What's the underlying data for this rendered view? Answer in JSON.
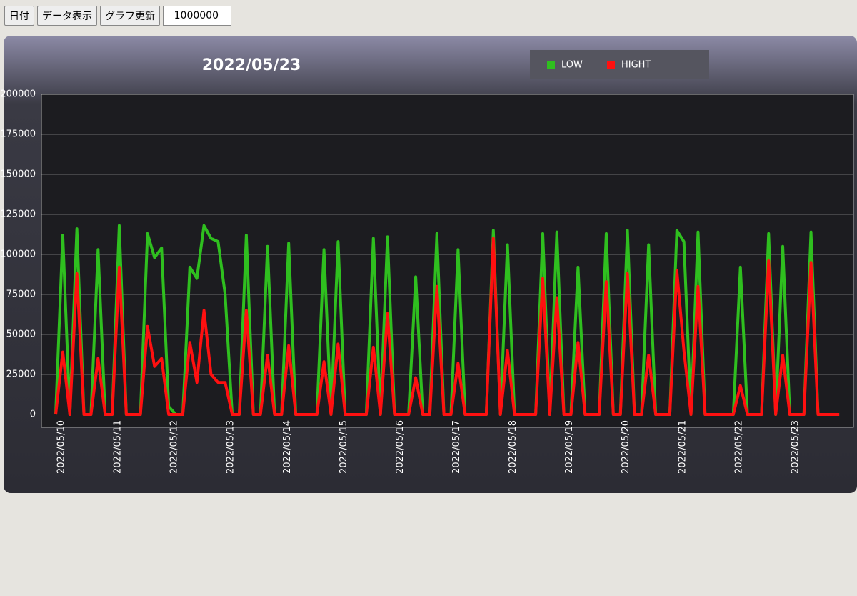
{
  "toolbar": {
    "buttons": [
      "日付",
      "データ表示",
      "グラフ更新"
    ],
    "input_value": "1000000"
  },
  "chart_data": {
    "type": "line",
    "title": "2022/05/23",
    "legend": "top-right",
    "grid": true,
    "ylim": [
      0,
      200000
    ],
    "yticks": [
      0,
      25000,
      50000,
      75000,
      100000,
      125000,
      150000,
      175000,
      200000
    ],
    "categories": [
      "2022/05/10",
      null,
      null,
      null,
      null,
      null,
      null,
      null,
      "2022/05/11",
      null,
      null,
      null,
      null,
      null,
      null,
      null,
      "2022/05/12",
      null,
      null,
      null,
      null,
      null,
      null,
      null,
      "2022/05/13",
      null,
      null,
      null,
      null,
      null,
      null,
      null,
      "2022/05/14",
      null,
      null,
      null,
      null,
      null,
      null,
      null,
      "2022/05/15",
      null,
      null,
      null,
      null,
      null,
      null,
      null,
      "2022/05/16",
      null,
      null,
      null,
      null,
      null,
      null,
      null,
      "2022/05/17",
      null,
      null,
      null,
      null,
      null,
      null,
      null,
      "2022/05/18",
      null,
      null,
      null,
      null,
      null,
      null,
      null,
      "2022/05/19",
      null,
      null,
      null,
      null,
      null,
      null,
      null,
      "2022/05/20",
      null,
      null,
      null,
      null,
      null,
      null,
      null,
      "2022/05/21",
      null,
      null,
      null,
      null,
      null,
      null,
      null,
      "2022/05/22",
      null,
      null,
      null,
      null,
      null,
      null,
      null,
      "2022/05/23",
      null,
      null,
      null,
      null,
      null,
      null,
      null
    ],
    "series": [
      {
        "name": "LOW",
        "color": "#2fbf1f",
        "values": [
          0,
          112000,
          0,
          116000,
          0,
          0,
          103000,
          0,
          0,
          118000,
          0,
          0,
          0,
          113000,
          98000,
          104000,
          5000,
          0,
          0,
          92000,
          85000,
          118000,
          110000,
          108000,
          75000,
          0,
          0,
          112000,
          0,
          0,
          105000,
          0,
          0,
          107000,
          0,
          0,
          0,
          0,
          103000,
          0,
          108000,
          0,
          0,
          0,
          0,
          110000,
          0,
          111000,
          0,
          0,
          0,
          86000,
          0,
          0,
          113000,
          0,
          0,
          103000,
          0,
          0,
          0,
          0,
          115000,
          0,
          106000,
          0,
          0,
          0,
          0,
          113000,
          0,
          114000,
          0,
          0,
          92000,
          0,
          0,
          0,
          113000,
          0,
          0,
          115000,
          0,
          0,
          106000,
          0,
          0,
          0,
          115000,
          108000,
          0,
          114000,
          0,
          0,
          0,
          0,
          0,
          92000,
          0,
          0,
          0,
          113000,
          0,
          105000,
          0,
          0,
          0,
          114000,
          0,
          0,
          0,
          0
        ]
      },
      {
        "name": "HIGHT",
        "color": "#ff1010",
        "values": [
          0,
          39000,
          0,
          88000,
          0,
          0,
          35000,
          0,
          0,
          92000,
          0,
          0,
          0,
          55000,
          30000,
          35000,
          0,
          0,
          0,
          45000,
          20000,
          65000,
          25000,
          20000,
          20000,
          0,
          0,
          65000,
          0,
          0,
          37000,
          0,
          0,
          43000,
          0,
          0,
          0,
          0,
          33000,
          0,
          44000,
          0,
          0,
          0,
          0,
          42000,
          0,
          63000,
          0,
          0,
          0,
          23000,
          0,
          0,
          80000,
          0,
          0,
          32000,
          0,
          0,
          0,
          0,
          110000,
          0,
          40000,
          0,
          0,
          0,
          0,
          85000,
          0,
          73000,
          0,
          0,
          45000,
          0,
          0,
          0,
          83000,
          0,
          0,
          88000,
          0,
          0,
          37000,
          0,
          0,
          0,
          90000,
          40000,
          0,
          80000,
          0,
          0,
          0,
          0,
          0,
          18000,
          0,
          0,
          0,
          96000,
          0,
          37000,
          0,
          0,
          0,
          95000,
          0,
          0,
          0,
          0
        ]
      }
    ]
  }
}
